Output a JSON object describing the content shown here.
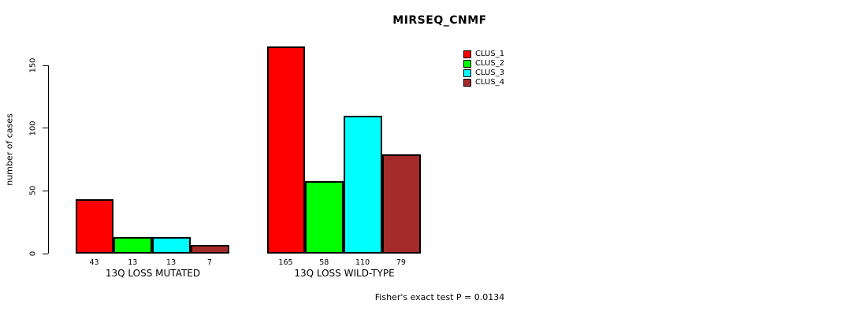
{
  "title": "MIRSEQ_CNMF",
  "footer": "Fisher's exact test P = 0.0134",
  "chart_data": {
    "type": "bar",
    "title": "MIRSEQ_CNMF",
    "ylabel": "number of cases",
    "xlabel": "",
    "ylim": [
      0,
      150
    ],
    "yticks": [
      0,
      50,
      100,
      150
    ],
    "grid": false,
    "legend_position": "top-right",
    "categories": [
      "13Q LOSS MUTATED",
      "13Q LOSS WILD-TYPE"
    ],
    "series": [
      {
        "name": "CLUS_1",
        "color": "#ff0000",
        "values": [
          43,
          165
        ]
      },
      {
        "name": "CLUS_2",
        "color": "#00ff00",
        "values": [
          13,
          58
        ]
      },
      {
        "name": "CLUS_3",
        "color": "#00ffff",
        "values": [
          13,
          110
        ]
      },
      {
        "name": "CLUS_4",
        "color": "#a52a2a",
        "values": [
          7,
          79
        ]
      }
    ]
  }
}
